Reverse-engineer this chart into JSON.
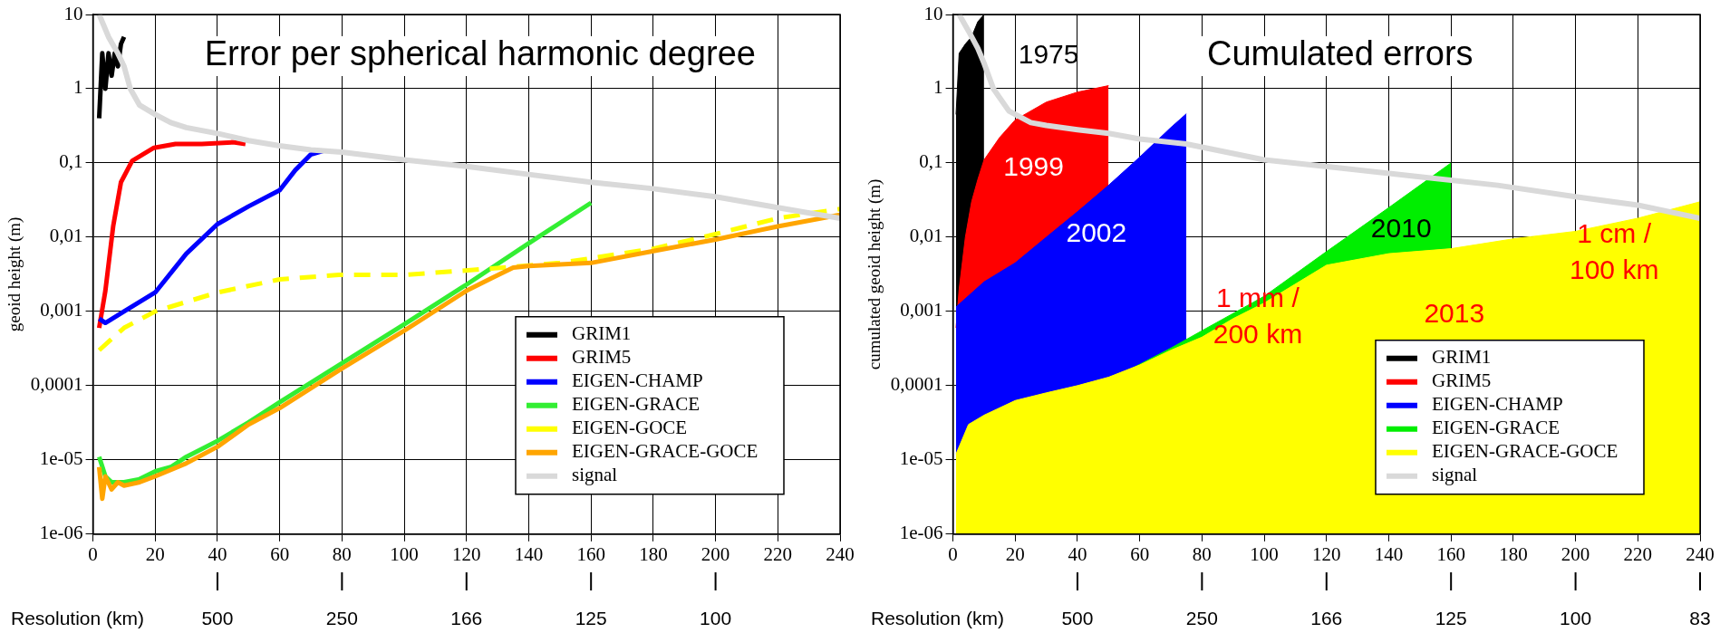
{
  "chart_data": [
    {
      "type": "line",
      "title": "Error per spherical harmonic degree",
      "ylabel": "geoid height (m)",
      "x2label": "Resolution (km)",
      "log": "y",
      "grid": true,
      "legend": "bottom right",
      "xlim": [
        0,
        240
      ],
      "xticks": [
        0,
        20,
        40,
        60,
        80,
        100,
        120,
        140,
        160,
        180,
        200,
        220,
        240
      ],
      "annotations": [
        "500",
        "250",
        "166",
        "125",
        "100"
      ],
      "ylim": [
        1e-06,
        10
      ],
      "yticks": [
        {
          "value": 1e-06,
          "label": "1e-06"
        },
        {
          "value": 1e-05,
          "label": "1e-05"
        },
        {
          "value": 0.0001,
          "label": "0,0001"
        },
        {
          "value": 0.001,
          "label": "0,001"
        },
        {
          "value": 0.01,
          "label": "0,01"
        },
        {
          "value": 0.1,
          "label": "0,1"
        },
        {
          "value": 1,
          "label": "1"
        },
        {
          "value": 10,
          "label": "10"
        }
      ],
      "series": [
        {
          "name": "GRIM1",
          "color": "#000000",
          "x": [
            2,
            3,
            4,
            5,
            6,
            7,
            8,
            9,
            10
          ],
          "values": [
            0.4,
            3,
            1,
            3,
            1.5,
            3,
            2,
            4,
            5
          ]
        },
        {
          "name": "GRIM5",
          "color": "#ff0000",
          "x": [
            2,
            4,
            6.5,
            9,
            12.6,
            19.6,
            26.5,
            35,
            45,
            49
          ],
          "values": [
            0.0006,
            0.0019,
            0.014,
            0.055,
            0.107,
            0.16,
            0.18,
            0.18,
            0.19,
            0.18
          ]
        },
        {
          "name": "EIGEN-CHAMP",
          "color": "#0000ff",
          "x": [
            2,
            4,
            10,
            20,
            30,
            40,
            50,
            60,
            65,
            70,
            74
          ],
          "values": [
            0.0008,
            0.0007,
            0.001,
            0.0018,
            0.006,
            0.015,
            0.026,
            0.043,
            0.08,
            0.13,
            0.145
          ]
        },
        {
          "name": "EIGEN-GRACE",
          "color": "#33ee33",
          "x": [
            2,
            4,
            6,
            10,
            15,
            20,
            25,
            30,
            35,
            40,
            50,
            60,
            80,
            100,
            120,
            140,
            160
          ],
          "values": [
            1.1e-05,
            6e-06,
            5e-06,
            5e-06,
            5.5e-06,
            7e-06,
            8e-06,
            1.1e-05,
            1.4e-05,
            1.8e-05,
            3.2e-05,
            6e-05,
            0.0002,
            0.00067,
            0.0023,
            0.0083,
            0.029
          ]
        },
        {
          "name": "EIGEN-GOCE",
          "color": "#ffff00",
          "line_style": "dashed",
          "x": [
            2,
            10,
            20,
            40,
            60,
            79,
            100,
            129,
            150,
            160,
            180,
            200,
            220,
            240
          ],
          "values": [
            0.0003,
            0.0006,
            0.001,
            0.0018,
            0.0027,
            0.0031,
            0.0031,
            0.0038,
            0.0045,
            0.0052,
            0.007,
            0.011,
            0.018,
            0.024
          ]
        },
        {
          "name": "EIGEN-GRACE-GOCE",
          "color": "#ffa500",
          "x": [
            2,
            3,
            4,
            6,
            8,
            10,
            15,
            20,
            30,
            40,
            50,
            60,
            80,
            100,
            120,
            128,
            135,
            140,
            160,
            180,
            200,
            220,
            240
          ],
          "values": [
            8e-06,
            3e-06,
            6e-06,
            4e-06,
            5e-06,
            4.5e-06,
            5e-06,
            6e-06,
            9e-06,
            1.5e-05,
            3e-05,
            5e-05,
            0.00017,
            0.00055,
            0.0019,
            0.0028,
            0.0039,
            0.0041,
            0.0045,
            0.0065,
            0.0093,
            0.014,
            0.02
          ]
        },
        {
          "name": "signal",
          "color": "#d9d9d9",
          "x": [
            2,
            5,
            8,
            10,
            12,
            15,
            20,
            25,
            30,
            40,
            50,
            60,
            70,
            80,
            100,
            120,
            140,
            160,
            180,
            200,
            220,
            240
          ],
          "values": [
            10,
            5,
            3,
            2,
            1,
            0.6,
            0.45,
            0.35,
            0.3,
            0.25,
            0.2,
            0.17,
            0.15,
            0.14,
            0.11,
            0.09,
            0.07,
            0.055,
            0.045,
            0.035,
            0.025,
            0.018
          ]
        }
      ]
    },
    {
      "type": "area",
      "title": "Cumulated errors",
      "ylabel": "cumulated geoid height (m)",
      "x2label": "Resolution (km)",
      "log": "y",
      "grid": true,
      "legend": "bottom right",
      "xlim": [
        0,
        240
      ],
      "xticks": [
        0,
        20,
        40,
        60,
        80,
        100,
        120,
        140,
        160,
        180,
        200,
        220,
        240
      ],
      "ylim": [
        1e-06,
        10
      ],
      "yticks": [
        {
          "value": 1e-06,
          "label": "1e-06"
        },
        {
          "value": 1e-05,
          "label": "1e-05"
        },
        {
          "value": 0.0001,
          "label": "0,0001"
        },
        {
          "value": 0.001,
          "label": "0,001"
        },
        {
          "value": 0.01,
          "label": "0,01"
        },
        {
          "value": 0.1,
          "label": "0,1"
        },
        {
          "value": 1,
          "label": "1"
        },
        {
          "value": 10,
          "label": "10"
        }
      ],
      "series": [
        {
          "name": "GRIM1",
          "color": "#000000",
          "x": [
            1,
            2,
            4,
            6,
            8,
            10
          ],
          "values": [
            0.45,
            3,
            4,
            5,
            8,
            10
          ]
        },
        {
          "name": "GRIM5",
          "color": "#ff0000",
          "x": [
            1,
            2,
            4,
            6,
            8,
            10,
            15,
            20,
            30,
            40,
            50
          ],
          "values": [
            0.0006,
            0.002,
            0.01,
            0.03,
            0.06,
            0.11,
            0.22,
            0.38,
            0.66,
            0.9,
            1.1
          ]
        },
        {
          "name": "EIGEN-CHAMP",
          "color": "#0000ff",
          "x": [
            1,
            10,
            20,
            30,
            40,
            50,
            60,
            70,
            75
          ],
          "values": [
            0.00115,
            0.0025,
            0.0045,
            0.01,
            0.022,
            0.05,
            0.12,
            0.3,
            0.46
          ]
        },
        {
          "name": "EIGEN-GRACE",
          "color": "#00ee00",
          "x": [
            1,
            70,
            80,
            100,
            120,
            140,
            160
          ],
          "values": [
            1e-05,
            0.00032,
            0.00055,
            0.0016,
            0.0064,
            0.025,
            0.1
          ]
        },
        {
          "name": "EIGEN-GRACE-GOCE",
          "color": "#ffff00",
          "x": [
            1,
            5,
            10,
            20,
            30,
            40,
            50,
            60,
            70,
            80,
            90,
            100,
            120,
            140,
            160,
            180,
            200,
            220,
            240
          ],
          "values": [
            1.2e-05,
            3e-05,
            4e-05,
            6.3e-05,
            8e-05,
            0.0001,
            0.00013,
            0.00019,
            0.0003,
            0.00045,
            0.0008,
            0.0013,
            0.0042,
            0.006,
            0.007,
            0.0095,
            0.012,
            0.018,
            0.03
          ]
        },
        {
          "name": "signal",
          "type": "line",
          "color": "#d9d9d9",
          "x": [
            2,
            5,
            8,
            10,
            13,
            18,
            25,
            30,
            40,
            50,
            60,
            75,
            100,
            125,
            150,
            175,
            200,
            220,
            240
          ],
          "values": [
            10,
            6,
            3.5,
            2.2,
            1,
            0.5,
            0.35,
            0.32,
            0.28,
            0.25,
            0.21,
            0.18,
            0.11,
            0.085,
            0.065,
            0.05,
            0.035,
            0.027,
            0.018
          ]
        }
      ],
      "annotations": [
        "1975",
        "1999",
        "2002",
        "2010",
        "1 mm /\n200 km",
        "2013",
        "1 cm /\n100 km",
        "500",
        "250",
        "166",
        "125",
        "100",
        "83"
      ]
    }
  ]
}
